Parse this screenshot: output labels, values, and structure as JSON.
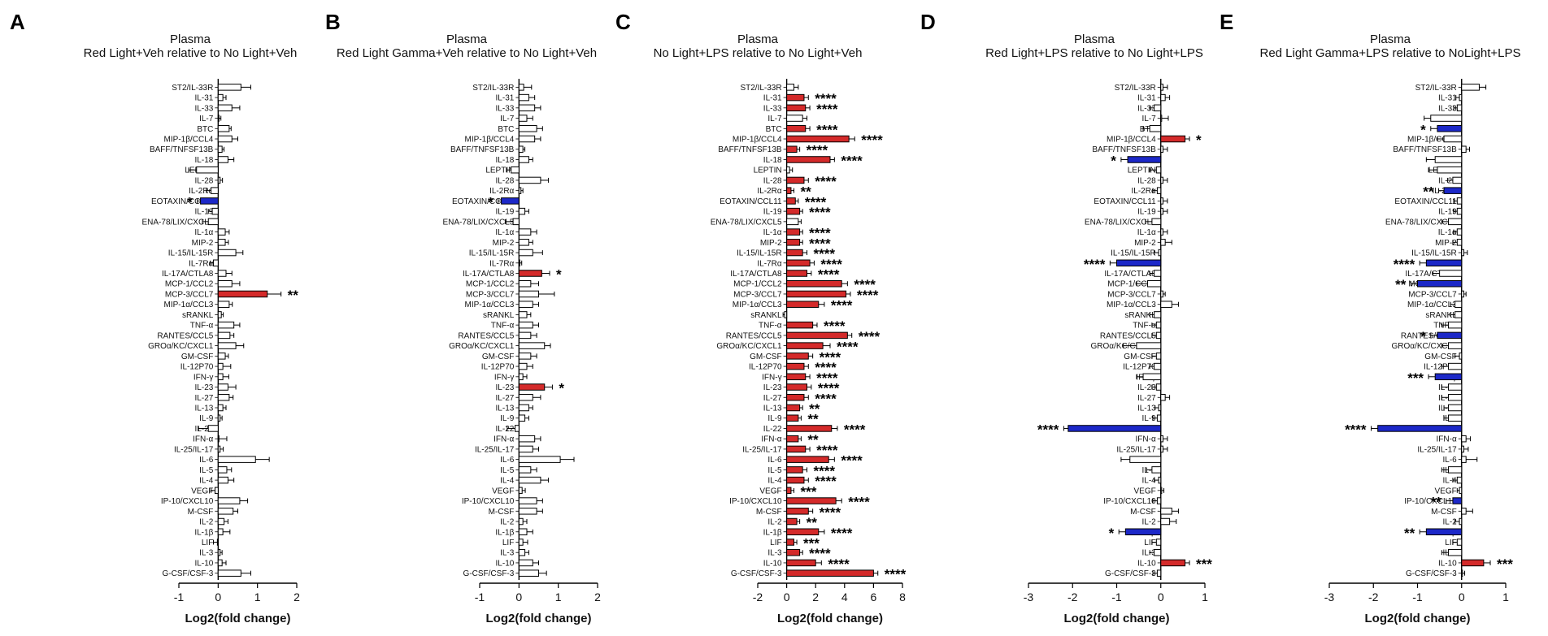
{
  "figure": {
    "categories": [
      "ST2/IL-33R",
      "IL-31",
      "IL-33",
      "IL-7",
      "BTC",
      "MIP-1β/CCL4",
      "BAFF/TNFSF13B",
      "IL-18",
      "LEPTIN",
      "IL-28",
      "IL-2Rα",
      "EOTAXIN/CCL11",
      "IL-19",
      "ENA-78/LIX/CXCL5",
      "IL-1α",
      "MIP-2",
      "IL-15/IL-15R",
      "IL-7Rα",
      "IL-17A/CTLA8",
      "MCP-1/CCL2",
      "MCP-3/CCL7",
      "MIP-1α/CCL3",
      "sRANKL",
      "TNF-α",
      "RANTES/CCL5",
      "GROα/KC/CXCL1",
      "GM-CSF",
      "IL-12P70",
      "IFN-γ",
      "IL-23",
      "IL-27",
      "IL-13",
      "IL-9",
      "IL-22",
      "IFN-α",
      "IL-25/IL-17",
      "IL-6",
      "IL-5",
      "IL-4",
      "VEGF",
      "IP-10/CXCL10",
      "M-CSF",
      "IL-2",
      "IL-1β",
      "LIF",
      "IL-3",
      "IL-10",
      "G-CSF/CSF-3"
    ],
    "colors": {
      "up": "#d42a2a",
      "down": "#1c28c8",
      "ns": "#ffffff",
      "stroke": "#000000"
    }
  },
  "chart_data": [
    {
      "type": "bar",
      "orientation": "horizontal",
      "panel": "A",
      "title": "Plasma",
      "subtitle": "Red Light+Veh relative to No Light+Veh",
      "xlabel": "Log2(fold change)",
      "xlim": [
        -1,
        2
      ],
      "xticks": [
        -1,
        0,
        1,
        2
      ],
      "values": [
        0.58,
        0.12,
        0.35,
        0.02,
        0.28,
        0.35,
        0.1,
        0.25,
        -0.55,
        0.05,
        -0.18,
        -0.45,
        -0.15,
        -0.25,
        0.18,
        0.18,
        0.45,
        -0.12,
        0.2,
        0.35,
        1.25,
        0.28,
        0.08,
        0.4,
        0.3,
        0.45,
        0.18,
        0.12,
        0.12,
        0.25,
        0.28,
        0.12,
        0.05,
        -0.25,
        0.02,
        0.05,
        0.95,
        0.22,
        0.25,
        -0.08,
        0.55,
        0.38,
        0.15,
        0.12,
        -0.02,
        0.05,
        0.1,
        0.58
      ],
      "errors": [
        0.25,
        0.08,
        0.2,
        0.05,
        0.05,
        0.15,
        0.05,
        0.15,
        0.2,
        0.06,
        0.12,
        0.08,
        0.1,
        0.15,
        0.1,
        0.08,
        0.18,
        0.08,
        0.15,
        0.2,
        0.35,
        0.08,
        0.05,
        0.15,
        0.1,
        0.2,
        0.08,
        0.2,
        0.15,
        0.2,
        0.1,
        0.08,
        0.05,
        0.25,
        0.2,
        0.08,
        0.35,
        0.12,
        0.15,
        0.1,
        0.2,
        0.12,
        0.1,
        0.18,
        0.1,
        0.05,
        0.1,
        0.25
      ],
      "up": [
        20
      ],
      "down": [
        11
      ],
      "significance": {
        "11": "*",
        "20": "**"
      }
    },
    {
      "type": "bar",
      "orientation": "horizontal",
      "panel": "B",
      "title": "Plasma",
      "subtitle": "Red Light Gamma+Veh relative to No Light+Veh",
      "xlabel": "Log2(fold change)",
      "xlim": [
        -1,
        2
      ],
      "xticks": [
        -1,
        0,
        1,
        2
      ],
      "values": [
        0.12,
        0.25,
        0.4,
        0.2,
        0.45,
        0.4,
        0.1,
        0.25,
        -0.2,
        0.55,
        0.05,
        -0.45,
        0.15,
        -0.15,
        0.3,
        0.25,
        0.35,
        0.02,
        0.58,
        0.3,
        0.5,
        0.35,
        0.2,
        0.35,
        0.3,
        0.65,
        0.3,
        0.2,
        0.1,
        0.65,
        0.35,
        0.25,
        0.15,
        -0.1,
        0.4,
        0.35,
        1.05,
        0.3,
        0.55,
        0.08,
        0.45,
        0.45,
        0.1,
        0.2,
        0.1,
        0.15,
        0.35,
        0.5
      ],
      "errors": [
        0.2,
        0.15,
        0.15,
        0.15,
        0.15,
        0.15,
        0.05,
        0.1,
        0.12,
        0.2,
        0.05,
        0.08,
        0.1,
        0.2,
        0.15,
        0.1,
        0.25,
        0.05,
        0.2,
        0.2,
        0.4,
        0.15,
        0.1,
        0.15,
        0.15,
        0.15,
        0.15,
        0.15,
        0.1,
        0.2,
        0.2,
        0.1,
        0.1,
        0.2,
        0.15,
        0.15,
        0.35,
        0.15,
        0.2,
        0.08,
        0.15,
        0.15,
        0.1,
        0.15,
        0.12,
        0.1,
        0.15,
        0.2
      ],
      "up": [
        18,
        29
      ],
      "down": [
        11
      ],
      "significance": {
        "11": "*",
        "18": "*",
        "29": "*"
      }
    },
    {
      "type": "bar",
      "orientation": "horizontal",
      "panel": "C",
      "title": "Plasma",
      "subtitle": "No Light+LPS relative to No Light+Veh",
      "xlabel": "Log2(fold change)",
      "xlim": [
        -2,
        8
      ],
      "xticks": [
        -2,
        0,
        2,
        4,
        6,
        8
      ],
      "values": [
        0.5,
        1.2,
        1.3,
        1.1,
        1.3,
        4.3,
        0.7,
        3.0,
        0.2,
        1.2,
        0.3,
        0.6,
        0.9,
        0.8,
        0.9,
        0.9,
        1.1,
        1.6,
        1.4,
        3.8,
        4.1,
        2.2,
        -0.15,
        1.8,
        4.2,
        2.5,
        1.5,
        1.2,
        1.3,
        1.4,
        1.2,
        0.9,
        0.8,
        3.1,
        0.8,
        1.3,
        2.9,
        1.1,
        1.2,
        0.3,
        3.4,
        1.5,
        0.7,
        2.2,
        0.5,
        0.9,
        2.0,
        6.0
      ],
      "errors": [
        0.3,
        0.3,
        0.3,
        0.3,
        0.3,
        0.4,
        0.2,
        0.3,
        0.2,
        0.3,
        0.2,
        0.2,
        0.2,
        0.2,
        0.2,
        0.2,
        0.3,
        0.3,
        0.3,
        0.4,
        0.3,
        0.4,
        0.1,
        0.3,
        0.3,
        0.5,
        0.3,
        0.3,
        0.3,
        0.3,
        0.3,
        0.2,
        0.2,
        0.4,
        0.2,
        0.3,
        0.4,
        0.3,
        0.3,
        0.2,
        0.4,
        0.3,
        0.2,
        0.4,
        0.2,
        0.2,
        0.4,
        0.3
      ],
      "up": [
        1,
        2,
        4,
        5,
        6,
        7,
        9,
        10,
        11,
        12,
        14,
        15,
        16,
        17,
        18,
        19,
        20,
        21,
        23,
        24,
        25,
        26,
        27,
        28,
        29,
        30,
        31,
        32,
        33,
        34,
        35,
        36,
        37,
        38,
        39,
        40,
        41,
        42,
        43,
        44,
        45,
        46,
        47
      ],
      "down": [],
      "significance": {
        "1": "****",
        "2": "****",
        "4": "****",
        "5": "****",
        "6": "****",
        "7": "****",
        "9": "****",
        "10": "**",
        "11": "****",
        "12": "****",
        "14": "****",
        "15": "****",
        "16": "****",
        "17": "****",
        "18": "****",
        "19": "****",
        "20": "****",
        "21": "****",
        "23": "****",
        "24": "****",
        "25": "****",
        "26": "****",
        "27": "****",
        "28": "****",
        "29": "****",
        "30": "****",
        "31": "**",
        "32": "**",
        "33": "****",
        "34": "**",
        "35": "****",
        "36": "****",
        "37": "****",
        "38": "****",
        "39": "***",
        "40": "****",
        "41": "****",
        "42": "**",
        "43": "****",
        "44": "***",
        "45": "****",
        "46": "****",
        "47": "****"
      }
    },
    {
      "type": "bar",
      "orientation": "horizontal",
      "panel": "D",
      "title": "Plasma",
      "subtitle": "Red Light+LPS relative to No Light+LPS",
      "xlabel": "Log2(fold change)",
      "xlim": [
        -3,
        1
      ],
      "xticks": [
        -3,
        -2,
        -1,
        0,
        1
      ],
      "values": [
        0.05,
        0.1,
        -0.15,
        0.02,
        -0.25,
        0.55,
        0.05,
        -0.75,
        -0.1,
        0.05,
        -0.08,
        0.05,
        0.05,
        -0.2,
        0.05,
        0.1,
        -0.05,
        -1.0,
        -0.15,
        -0.3,
        0.05,
        0.25,
        -0.15,
        -0.1,
        -0.1,
        -0.55,
        -0.1,
        -0.15,
        -0.4,
        -0.1,
        0.1,
        -0.05,
        -0.08,
        -2.1,
        0.05,
        0.05,
        -0.7,
        -0.2,
        -0.05,
        0.02,
        -0.08,
        0.25,
        0.2,
        -0.8,
        -0.1,
        -0.15,
        0.55,
        -0.08
      ],
      "errors": [
        0.1,
        0.1,
        0.1,
        0.15,
        0.15,
        0.1,
        0.1,
        0.15,
        0.15,
        0.1,
        0.1,
        0.1,
        0.1,
        0.15,
        0.1,
        0.15,
        0.1,
        0.15,
        0.1,
        0.25,
        0.05,
        0.15,
        0.1,
        0.1,
        0.1,
        0.3,
        0.1,
        0.1,
        0.15,
        0.1,
        0.1,
        0.08,
        0.1,
        0.1,
        0.1,
        0.1,
        0.2,
        0.12,
        0.1,
        0.05,
        0.1,
        0.15,
        0.15,
        0.15,
        0.1,
        0.1,
        0.1,
        0.1
      ],
      "up": [
        5,
        46
      ],
      "down": [
        7,
        17,
        33,
        43
      ],
      "significance": {
        "5": "*",
        "7": "*",
        "17": "****",
        "33": "****",
        "43": "*",
        "46": "***"
      }
    },
    {
      "type": "bar",
      "orientation": "horizontal",
      "panel": "E",
      "title": "Plasma",
      "subtitle": "Red Light Gamma+LPS relative to NoLight+LPS",
      "xlabel": "Log2(fold change)",
      "xlim": [
        -3,
        1
      ],
      "xticks": [
        -3,
        -2,
        -1,
        0,
        1
      ],
      "values": [
        0.4,
        -0.05,
        -0.1,
        -0.7,
        -0.55,
        -0.4,
        0.1,
        -0.6,
        -0.55,
        -0.2,
        -0.4,
        -0.1,
        -0.1,
        -0.3,
        -0.1,
        -0.1,
        0.05,
        -0.8,
        -0.5,
        -1.0,
        0.05,
        -0.15,
        -0.15,
        -0.3,
        -0.55,
        -0.3,
        -0.05,
        -0.3,
        -0.6,
        -0.3,
        -0.3,
        -0.3,
        -0.3,
        -1.9,
        0.1,
        0.05,
        0.1,
        -0.3,
        -0.1,
        -0.05,
        -0.2,
        0.1,
        -0.05,
        -0.8,
        -0.1,
        -0.3,
        0.5,
        0.02
      ],
      "errors": [
        0.15,
        0.08,
        0.08,
        0.15,
        0.15,
        0.15,
        0.08,
        0.2,
        0.2,
        0.12,
        0.12,
        0.08,
        0.08,
        0.15,
        0.08,
        0.1,
        0.08,
        0.15,
        0.15,
        0.15,
        0.05,
        0.1,
        0.1,
        0.15,
        0.15,
        0.15,
        0.1,
        0.15,
        0.15,
        0.15,
        0.15,
        0.1,
        0.1,
        0.15,
        0.1,
        0.1,
        0.25,
        0.15,
        0.1,
        0.05,
        0.15,
        0.15,
        0.1,
        0.15,
        0.1,
        0.15,
        0.15,
        0.05
      ],
      "up": [
        46
      ],
      "down": [
        4,
        10,
        17,
        19,
        24,
        28,
        33,
        40,
        43
      ],
      "significance": {
        "4": "*",
        "10": "**",
        "17": "****",
        "19": "**",
        "24": "*",
        "28": "***",
        "33": "****",
        "40": "**",
        "43": "**",
        "46": "***"
      }
    }
  ]
}
